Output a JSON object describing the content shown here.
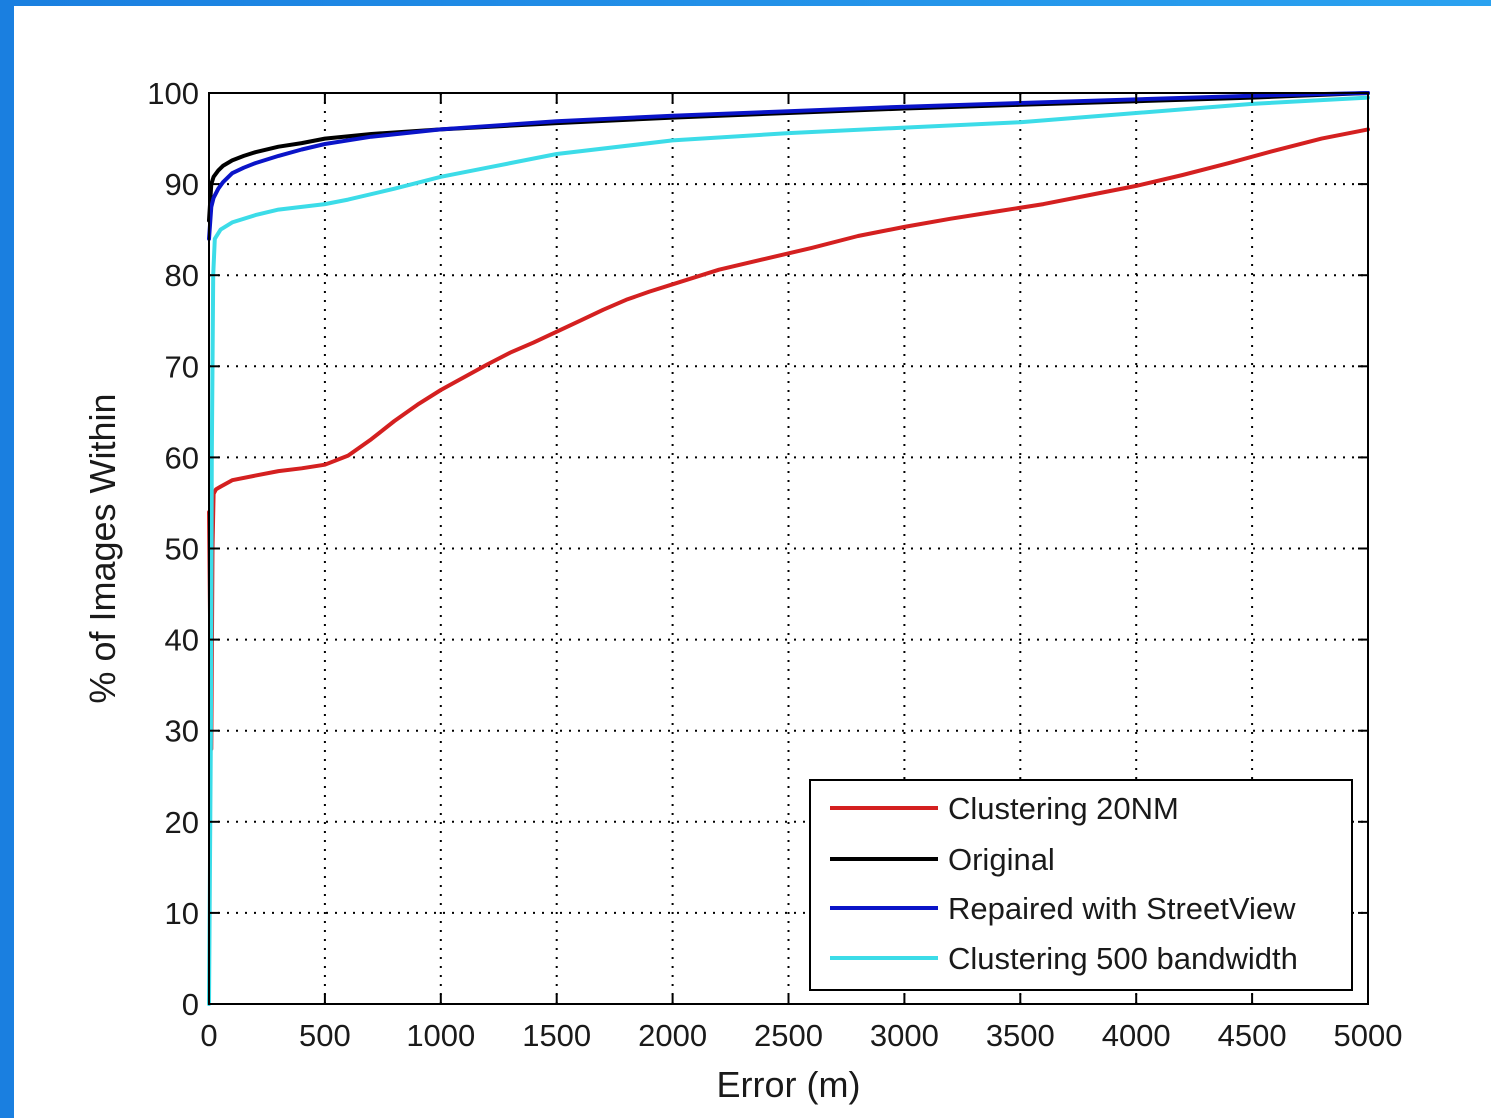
{
  "chart_data": {
    "type": "line",
    "title": "",
    "xlabel": "Error (m)",
    "ylabel": "% of Images Within",
    "xlim": [
      0,
      5000
    ],
    "ylim": [
      0,
      100
    ],
    "x_ticks": [
      "0",
      "500",
      "1000",
      "1500",
      "2000",
      "2500",
      "3000",
      "3500",
      "4000",
      "4500",
      "5000"
    ],
    "y_ticks": [
      "0",
      "10",
      "20",
      "30",
      "40",
      "50",
      "60",
      "70",
      "80",
      "90",
      "100"
    ],
    "grid": true,
    "legend_position": "bottom-right",
    "series": [
      {
        "name": "Clustering 20NM",
        "color": "#d42020",
        "x": [
          0,
          10,
          15,
          20,
          30,
          50,
          100,
          200,
          300,
          400,
          500,
          600,
          700,
          800,
          900,
          1000,
          1100,
          1200,
          1300,
          1400,
          1500,
          1600,
          1700,
          1800,
          1900,
          2000,
          2200,
          2400,
          2600,
          2800,
          3000,
          3200,
          3400,
          3600,
          3800,
          4000,
          4200,
          4400,
          4600,
          4800,
          5000
        ],
        "y": [
          54,
          28,
          50,
          56,
          56.5,
          56.8,
          57.5,
          58,
          58.5,
          58.8,
          59.2,
          60.2,
          62,
          64,
          65.8,
          67.4,
          68.8,
          70.2,
          71.5,
          72.6,
          73.8,
          75,
          76.2,
          77.3,
          78.2,
          79,
          80.6,
          81.8,
          83,
          84.3,
          85.3,
          86.2,
          87,
          87.8,
          88.8,
          89.8,
          91,
          92.3,
          93.7,
          95,
          96
        ]
      },
      {
        "name": "Original",
        "color": "#000000",
        "x": [
          0,
          10,
          20,
          40,
          60,
          100,
          150,
          200,
          300,
          400,
          500,
          700,
          1000,
          1500,
          2000,
          2500,
          3000,
          3500,
          4000,
          4500,
          5000
        ],
        "y": [
          86,
          90,
          90.8,
          91.5,
          92,
          92.6,
          93.1,
          93.5,
          94.1,
          94.5,
          95,
          95.5,
          96,
          96.7,
          97.3,
          97.8,
          98.3,
          98.7,
          99.1,
          99.5,
          100
        ]
      },
      {
        "name": "Repaired with StreetView",
        "color": "#0a14c8",
        "x": [
          0,
          10,
          20,
          40,
          60,
          100,
          150,
          200,
          300,
          400,
          500,
          700,
          1000,
          1500,
          2000,
          2500,
          3000,
          3500,
          4000,
          4500,
          5000
        ],
        "y": [
          84,
          87.5,
          88.5,
          89.5,
          90.2,
          91.2,
          91.8,
          92.3,
          93.1,
          93.8,
          94.4,
          95.2,
          96,
          96.9,
          97.5,
          98,
          98.5,
          98.9,
          99.3,
          99.7,
          100
        ]
      },
      {
        "name": "Clustering 500 bandwidth",
        "color": "#3cdce8",
        "x": [
          0,
          8,
          12,
          18,
          25,
          50,
          100,
          200,
          300,
          400,
          500,
          600,
          800,
          1000,
          1200,
          1500,
          2000,
          2500,
          3000,
          3500,
          4000,
          4500,
          5000
        ],
        "y": [
          0,
          30,
          60,
          80,
          84,
          85,
          85.8,
          86.6,
          87.2,
          87.5,
          87.8,
          88.3,
          89.5,
          90.8,
          91.8,
          93.3,
          94.8,
          95.6,
          96.2,
          96.8,
          97.8,
          98.8,
          99.5
        ]
      }
    ]
  }
}
